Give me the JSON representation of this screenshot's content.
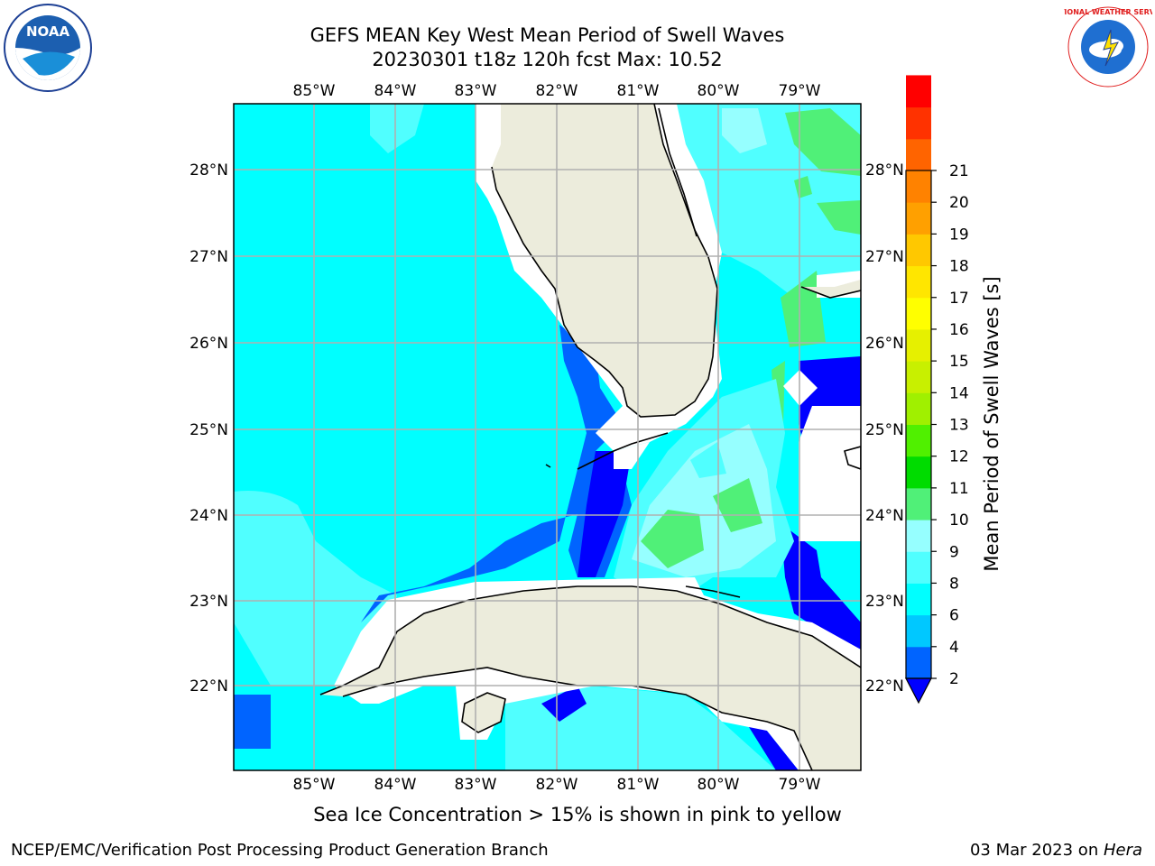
{
  "header": {
    "title_line1": "GEFS MEAN Key West Mean Period of Swell Waves",
    "title_line2": "20230301 t18z 120h fcst   Max: 10.52"
  },
  "map": {
    "lon_labels": [
      "85°W",
      "84°W",
      "83°W",
      "82°W",
      "81°W",
      "80°W",
      "79°W"
    ],
    "lat_labels": [
      "28°N",
      "27°N",
      "26°N",
      "25°N",
      "24°N",
      "23°N",
      "22°N"
    ],
    "land_color": "#ececdc",
    "ocean_base_color": "#00ffff"
  },
  "colorbar": {
    "label": "Mean Period of Swell Waves [s]",
    "ticks": [
      "2",
      "4",
      "6",
      "8",
      "9",
      "10",
      "11",
      "12",
      "13",
      "14",
      "15",
      "16",
      "17",
      "18",
      "19",
      "20",
      "21"
    ],
    "colors": [
      "#0064ff",
      "#00c8ff",
      "#00ffff",
      "#50ffff",
      "#96ffff",
      "#50f078",
      "#00dc00",
      "#50f000",
      "#a0f000",
      "#c8f000",
      "#e6f000",
      "#ffff00",
      "#ffe600",
      "#ffc800",
      "#ffa000",
      "#ff8200",
      "#ff6400",
      "#ff3200",
      "#ff0000"
    ],
    "extend_color": "#0000ff"
  },
  "footer": {
    "note": "Sea Ice Concentration > 15% is shown in pink to yellow",
    "credit": "NCEP/EMC/Verification Post Processing Product Generation Branch",
    "date": "03 Mar 2023 on ",
    "host": "Hera"
  },
  "logos": {
    "left": "NOAA",
    "right_ring": "NATIONAL WEATHER SERVICE"
  }
}
